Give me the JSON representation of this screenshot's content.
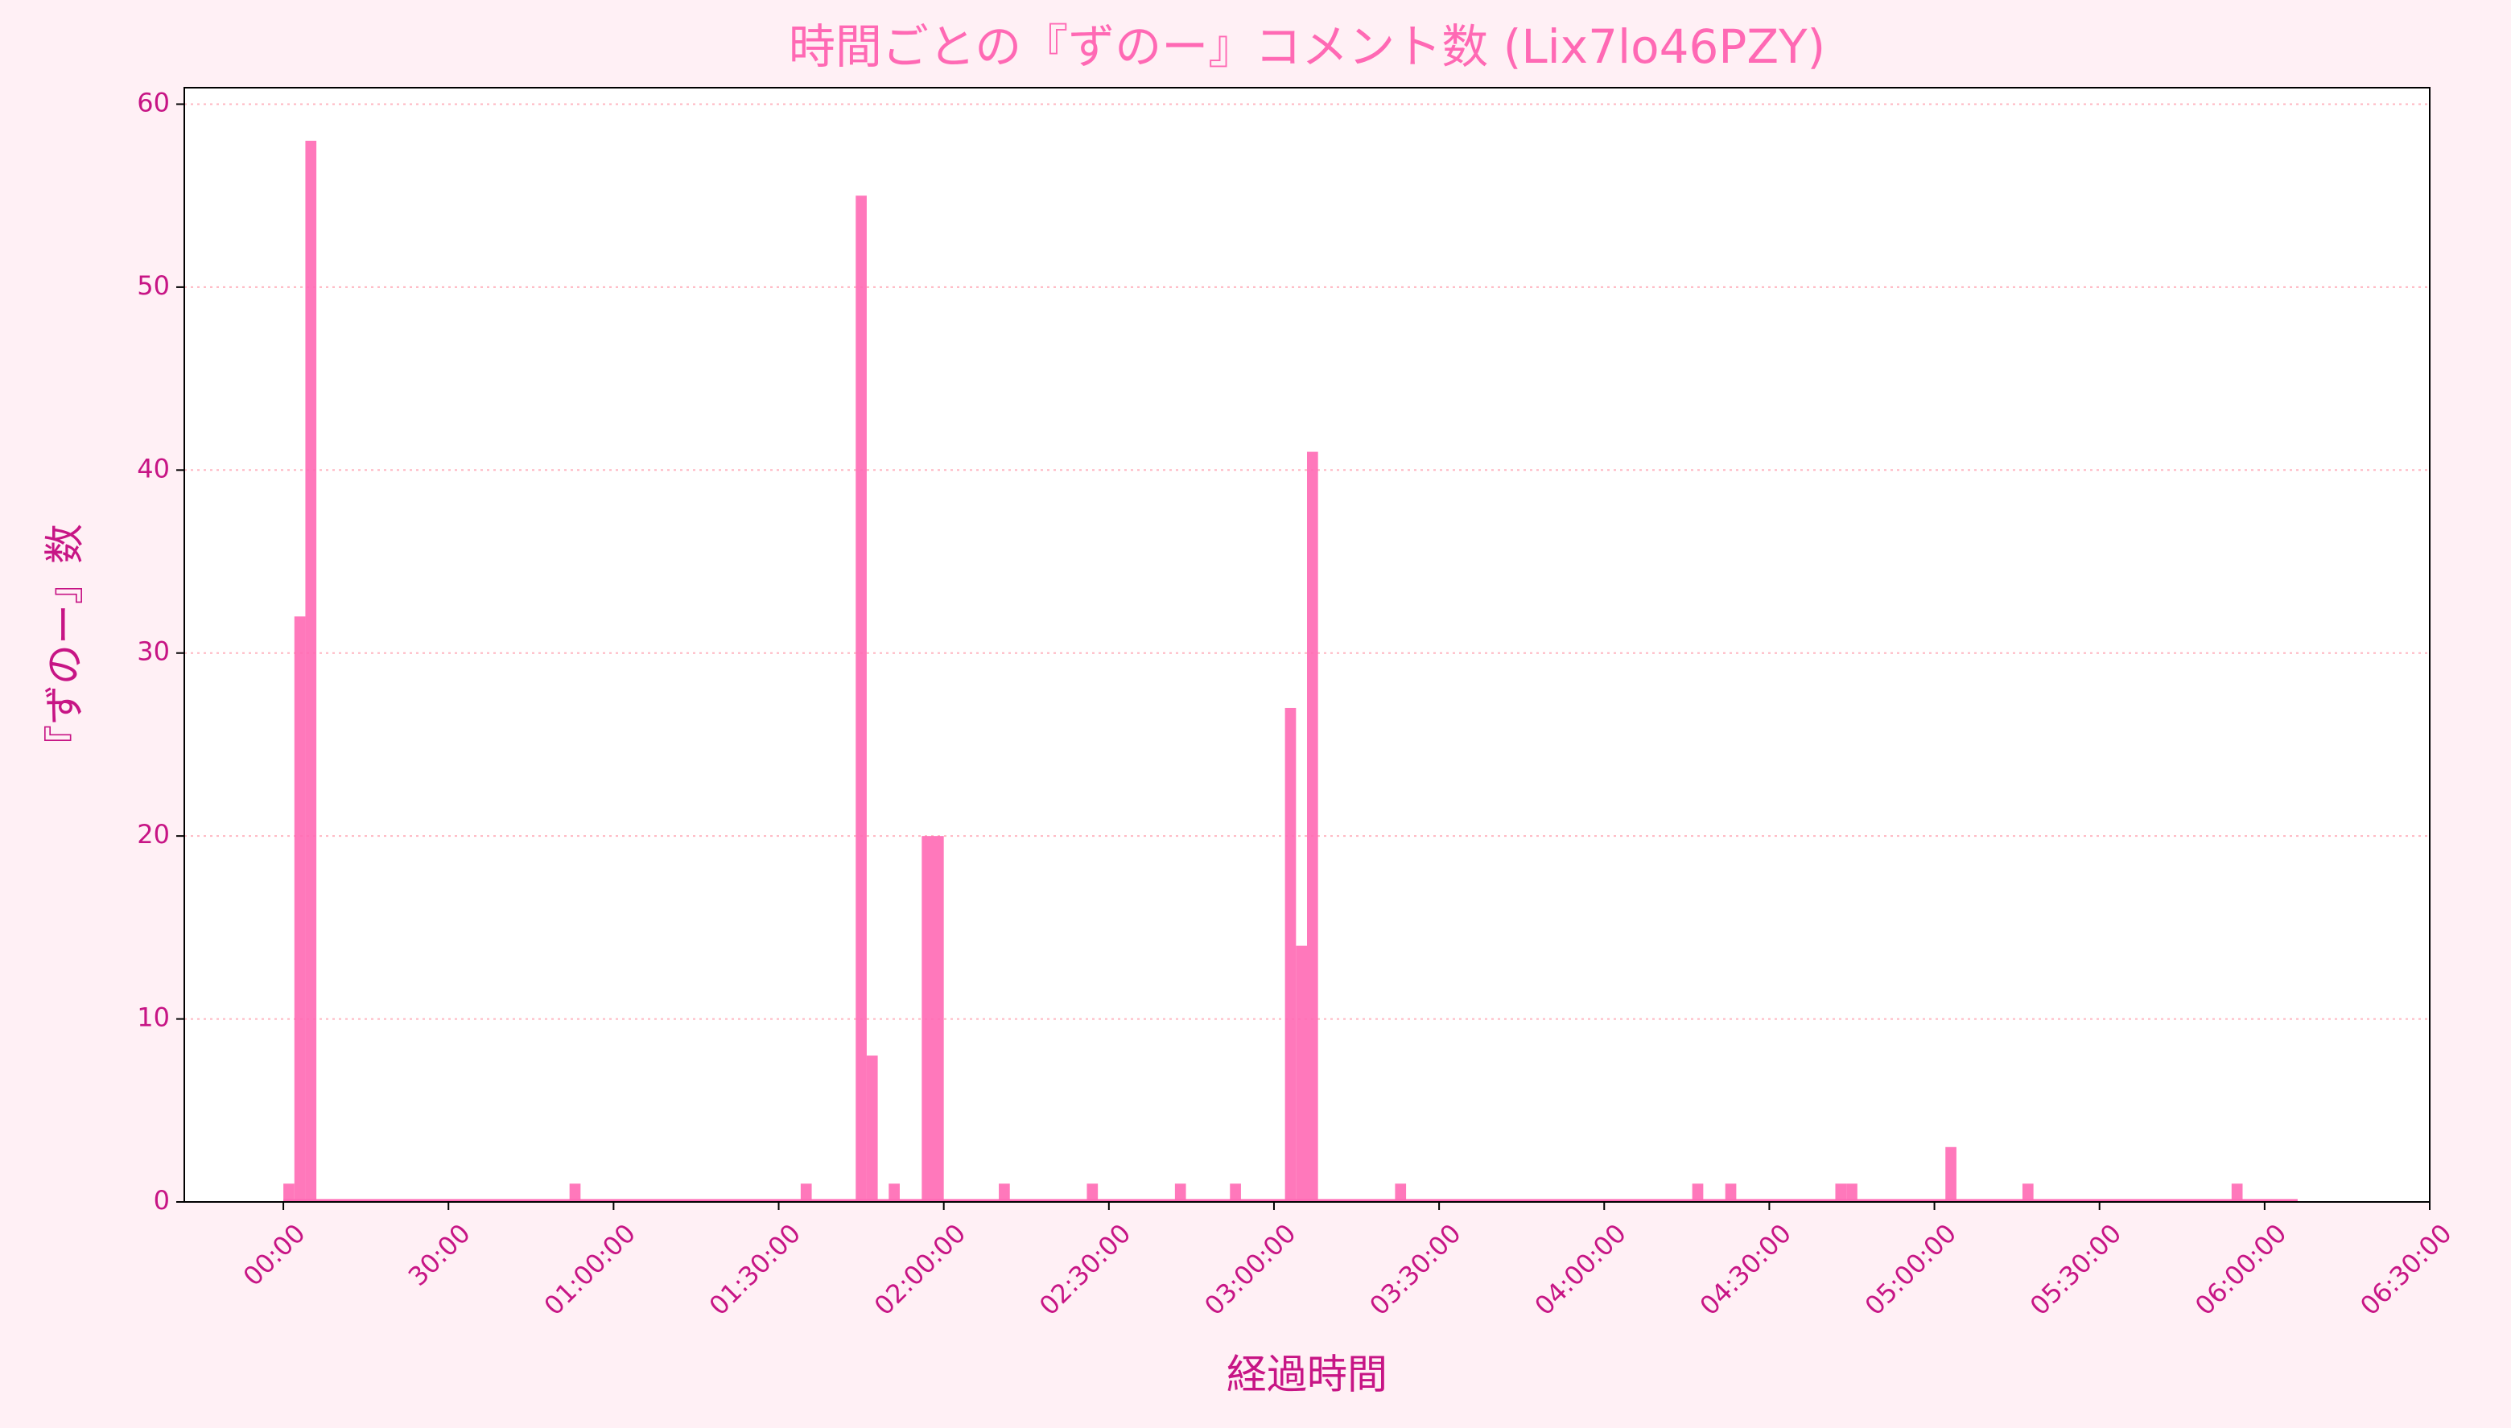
{
  "chart_data": {
    "type": "bar",
    "title": "時間ごとの『ずのー』コメント数 (Lix7lo46PZY)",
    "xlabel": "経過時間",
    "ylabel": "『ずのー』数",
    "x": [
      0,
      120,
      240,
      3120,
      5640,
      6240,
      6360,
      6600,
      6960,
      7080,
      7800,
      8760,
      9720,
      10320,
      10920,
      11040,
      11160,
      12120,
      15360,
      15720,
      16920,
      17040,
      18120,
      18960,
      21240,
      21840
    ],
    "values": [
      1,
      32,
      58,
      1,
      1,
      55,
      8,
      1,
      20,
      20,
      1,
      1,
      1,
      1,
      27,
      14,
      41,
      1,
      1,
      1,
      1,
      1,
      3,
      1,
      1,
      0
    ],
    "color": "#ff69b4",
    "xlim": [
      -1080,
      23400
    ],
    "xticks": [
      {
        "value": 0,
        "label": "00:00"
      },
      {
        "value": 1800,
        "label": "30:00"
      },
      {
        "value": 3600,
        "label": "01:00:00"
      },
      {
        "value": 5400,
        "label": "01:30:00"
      },
      {
        "value": 7200,
        "label": "02:00:00"
      },
      {
        "value": 9000,
        "label": "02:30:00"
      },
      {
        "value": 10800,
        "label": "03:00:00"
      },
      {
        "value": 12600,
        "label": "03:30:00"
      },
      {
        "value": 14400,
        "label": "04:00:00"
      },
      {
        "value": 16200,
        "label": "04:30:00"
      },
      {
        "value": 18000,
        "label": "05:00:00"
      },
      {
        "value": 19800,
        "label": "05:30:00"
      },
      {
        "value": 21600,
        "label": "06:00:00"
      },
      {
        "value": 23400,
        "label": "06:30:00"
      }
    ],
    "ylim": [
      0,
      60.9
    ],
    "yticks": [
      0,
      10,
      20,
      30,
      40,
      50,
      60
    ],
    "grid": true
  }
}
